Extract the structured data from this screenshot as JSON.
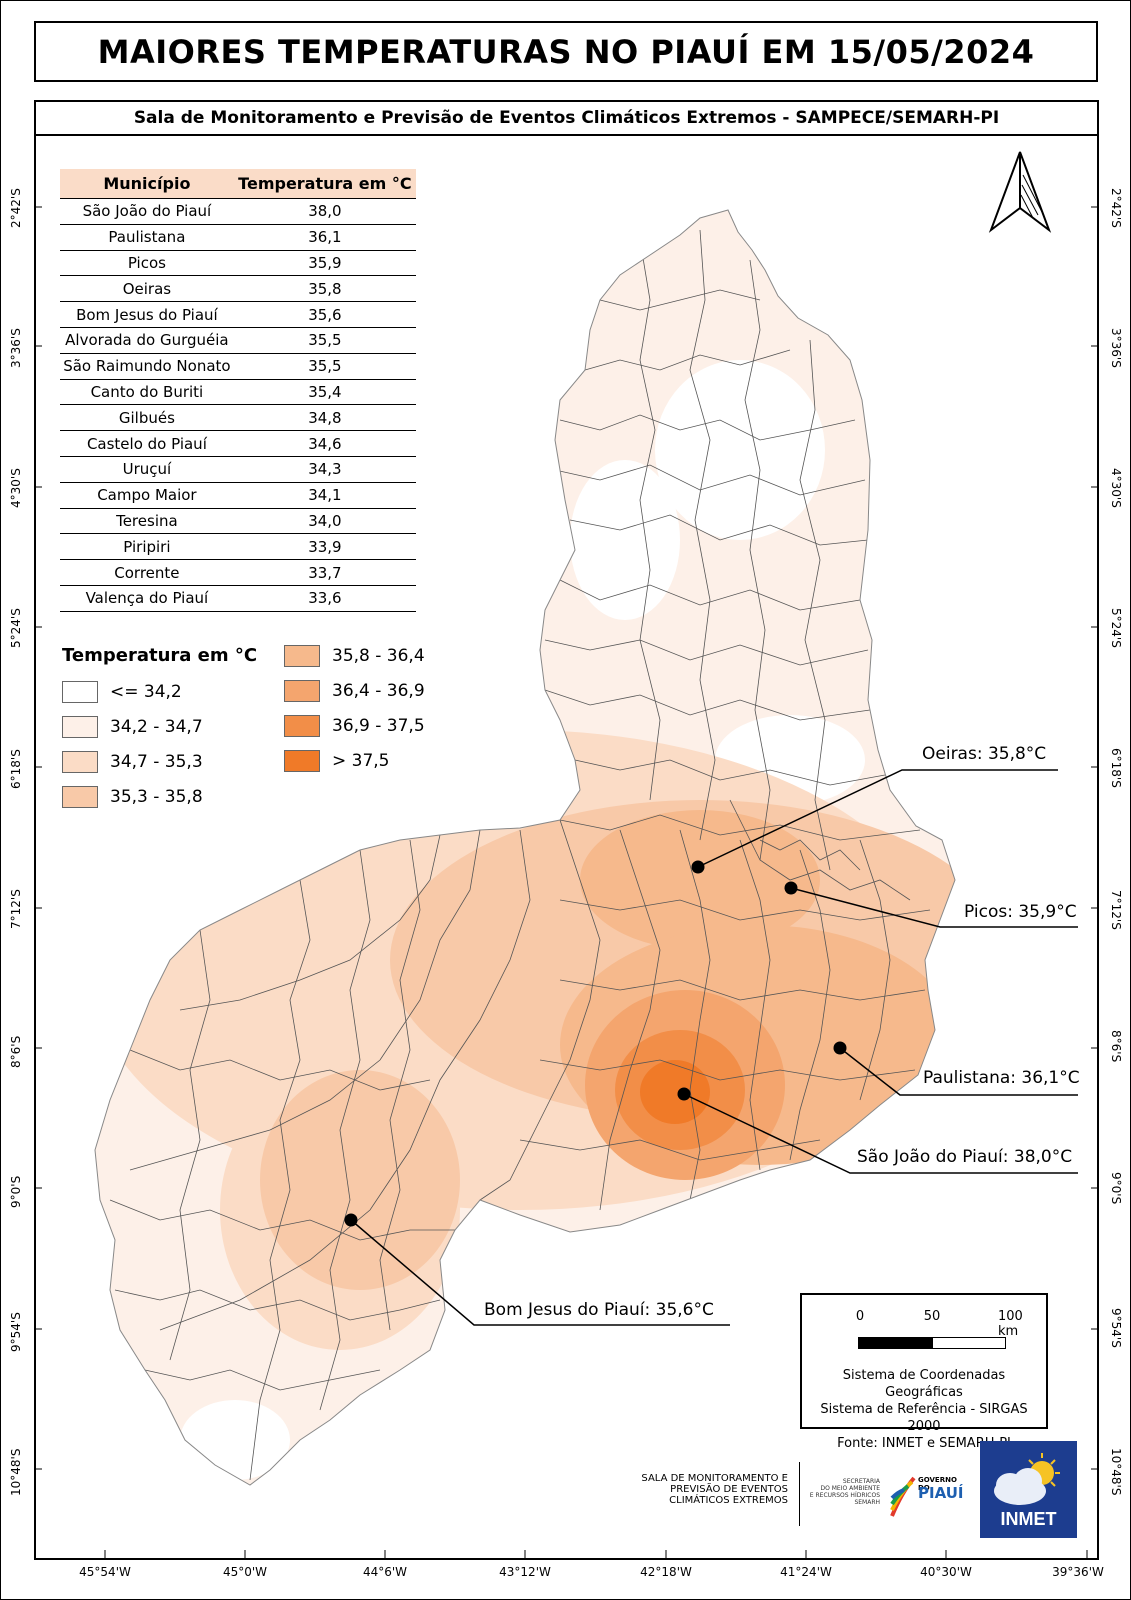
{
  "title": "MAIORES TEMPERATURAS NO PIAUÍ EM 15/05/2024",
  "subtitle": "Sala de Monitoramento e Previsão de Eventos Climáticos Extremos - SAMPECE/SEMARH-PI",
  "table": {
    "headers": [
      "Município",
      "Temperatura em °C"
    ],
    "rows": [
      [
        "São João do Piauí",
        "38,0"
      ],
      [
        "Paulistana",
        "36,1"
      ],
      [
        "Picos",
        "35,9"
      ],
      [
        "Oeiras",
        "35,8"
      ],
      [
        "Bom Jesus do Piauí",
        "35,6"
      ],
      [
        "Alvorada do Gurguéia",
        "35,5"
      ],
      [
        "São Raimundo Nonato",
        "35,5"
      ],
      [
        "Canto do Buriti",
        "35,4"
      ],
      [
        "Gilbués",
        "34,8"
      ],
      [
        "Castelo do Piauí",
        "34,6"
      ],
      [
        "Uruçuí",
        "34,3"
      ],
      [
        "Campo Maior",
        "34,1"
      ],
      [
        "Teresina",
        "34,0"
      ],
      [
        "Piripiri",
        "33,9"
      ],
      [
        "Corrente",
        "33,7"
      ],
      [
        "Valença do Piauí",
        "33,6"
      ]
    ]
  },
  "legend": {
    "title": "Temperatura em °C",
    "classes": [
      {
        "label": "<= 34,2",
        "color": "#ffffff"
      },
      {
        "label": "34,2 - 34,7",
        "color": "#fdf0e8"
      },
      {
        "label": "34,7 - 35,3",
        "color": "#fbdcc6"
      },
      {
        "label": "35,3 - 35,8",
        "color": "#f8c9a8"
      },
      {
        "label": "35,8 - 36,4",
        "color": "#f6b98c"
      },
      {
        "label": "36,4 - 36,9",
        "color": "#f4a56e"
      },
      {
        "label": "36,9 - 37,5",
        "color": "#f28e48"
      },
      {
        "label": "> 37,5",
        "color": "#f07a28"
      }
    ]
  },
  "callouts": [
    {
      "label": "Oeiras: 35,8°C"
    },
    {
      "label": "Picos: 35,9°C"
    },
    {
      "label": "Paulistana: 36,1°C"
    },
    {
      "label": "São João do Piauí: 38,0°C"
    },
    {
      "label": "Bom Jesus do Piauí: 35,6°C"
    }
  ],
  "lat_ticks": [
    "2°42'S",
    "3°36'S",
    "4°30'S",
    "5°24'S",
    "6°18'S",
    "7°12'S",
    "8°6'S",
    "9°0'S",
    "9°54'S",
    "10°48'S"
  ],
  "lon_ticks": [
    "45°54'W",
    "45°0'W",
    "44°6'W",
    "43°12'W",
    "42°18'W",
    "41°24'W",
    "40°30'W",
    "39°36'W"
  ],
  "scale": {
    "labels": [
      "0",
      "50",
      "100 km"
    ],
    "info": [
      "Sistema de Coordenadas Geográficas",
      "Sistema de Referência - SIRGAS 2000",
      "Fonte: INMET e SEMARH-PI"
    ]
  },
  "logos": {
    "sala": [
      "SALA DE MONITORAMENTO E",
      "PREVISÃO DE EVENTOS",
      "CLIMÁTICOS EXTREMOS"
    ],
    "semarh": [
      "SECRETARIA",
      "DO MEIO AMBIENTE",
      "E RECURSOS HÍDRICOS",
      "SEMARH"
    ],
    "piaui": [
      "GOVERNO DO",
      "PIAUÍ"
    ],
    "inmet": "INMET"
  }
}
